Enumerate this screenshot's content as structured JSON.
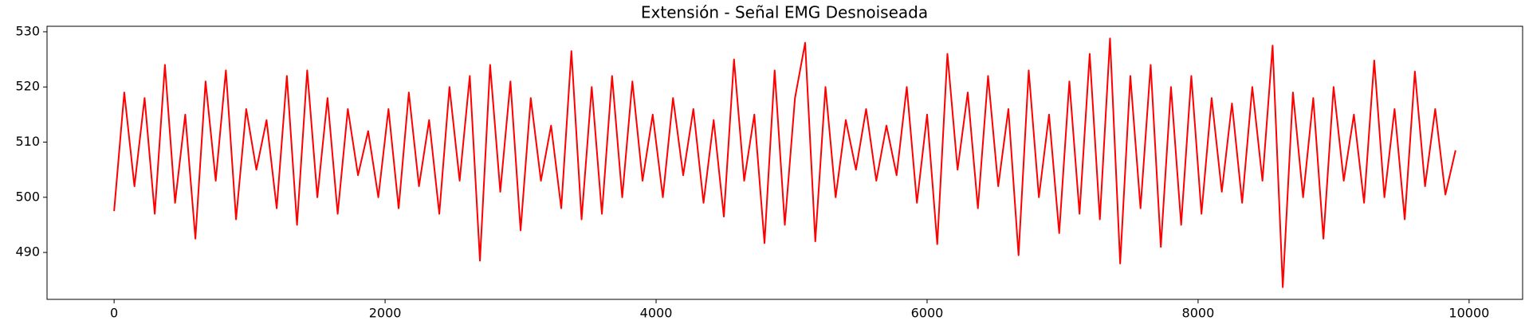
{
  "chart_data": {
    "type": "line",
    "title": "Extensión - Señal EMG Desnoiseada",
    "x": [
      0,
      75,
      150,
      225,
      300,
      375,
      450,
      525,
      600,
      675,
      750,
      825,
      900,
      975,
      1050,
      1125,
      1200,
      1275,
      1350,
      1425,
      1500,
      1575,
      1650,
      1725,
      1800,
      1875,
      1950,
      2025,
      2100,
      2175,
      2250,
      2325,
      2400,
      2475,
      2550,
      2625,
      2700,
      2775,
      2850,
      2925,
      3000,
      3075,
      3150,
      3225,
      3300,
      3375,
      3450,
      3525,
      3600,
      3675,
      3750,
      3825,
      3900,
      3975,
      4050,
      4125,
      4200,
      4275,
      4350,
      4425,
      4500,
      4575,
      4650,
      4725,
      4800,
      4875,
      4950,
      5025,
      5100,
      5175,
      5250,
      5325,
      5400,
      5475,
      5550,
      5625,
      5700,
      5775,
      5850,
      5925,
      6000,
      6075,
      6150,
      6225,
      6300,
      6375,
      6450,
      6525,
      6600,
      6675,
      6750,
      6825,
      6900,
      6975,
      7050,
      7125,
      7200,
      7275,
      7350,
      7425,
      7500,
      7575,
      7650,
      7725,
      7800,
      7875,
      7950,
      8025,
      8100,
      8175,
      8250,
      8325,
      8400,
      8475,
      8550,
      8625,
      8700,
      8775,
      8850,
      8925,
      9000,
      9075,
      9150,
      9225,
      9300,
      9375,
      9450,
      9525,
      9600,
      9675,
      9750,
      9825,
      9900
    ],
    "series": [
      {
        "name": "EMG",
        "color": "#ff0000",
        "values": [
          497.5,
          519,
          502,
          518,
          497,
          524,
          499,
          515,
          492.5,
          521,
          503,
          523,
          496,
          516,
          505,
          514,
          498,
          522,
          495,
          523,
          500,
          518,
          497,
          516,
          504,
          512,
          500,
          516,
          498,
          519,
          502,
          514,
          497,
          520,
          503,
          522,
          488.5,
          524,
          501,
          521,
          494,
          518,
          503,
          513,
          498,
          526.5,
          496,
          520,
          497,
          522,
          500,
          521,
          503,
          515,
          500,
          518,
          504,
          516,
          499,
          514,
          496.5,
          525,
          503,
          515,
          491.7,
          523,
          495,
          518,
          528,
          492,
          520,
          500,
          514,
          505,
          516,
          503,
          513,
          504,
          520,
          499,
          515,
          491.5,
          526,
          505,
          519,
          498,
          522,
          502,
          516,
          489.5,
          523,
          500,
          515,
          493.5,
          521,
          497,
          526,
          496,
          528.8,
          488,
          522,
          498,
          524,
          491,
          520,
          495,
          522,
          497,
          518,
          501,
          517,
          499,
          520,
          503,
          527.5,
          483.7,
          519,
          500,
          518,
          492.5,
          520,
          503,
          515,
          499,
          524.8,
          500,
          516,
          496,
          522.8,
          502,
          516,
          500.5,
          508.5
        ]
      }
    ],
    "xlim": [
      -495,
      10395
    ],
    "ylim": [
      481.5,
      531
    ],
    "xticks": [
      0,
      2000,
      4000,
      6000,
      8000,
      10000
    ],
    "yticks": [
      490,
      500,
      510,
      520,
      530
    ],
    "grid": false
  }
}
